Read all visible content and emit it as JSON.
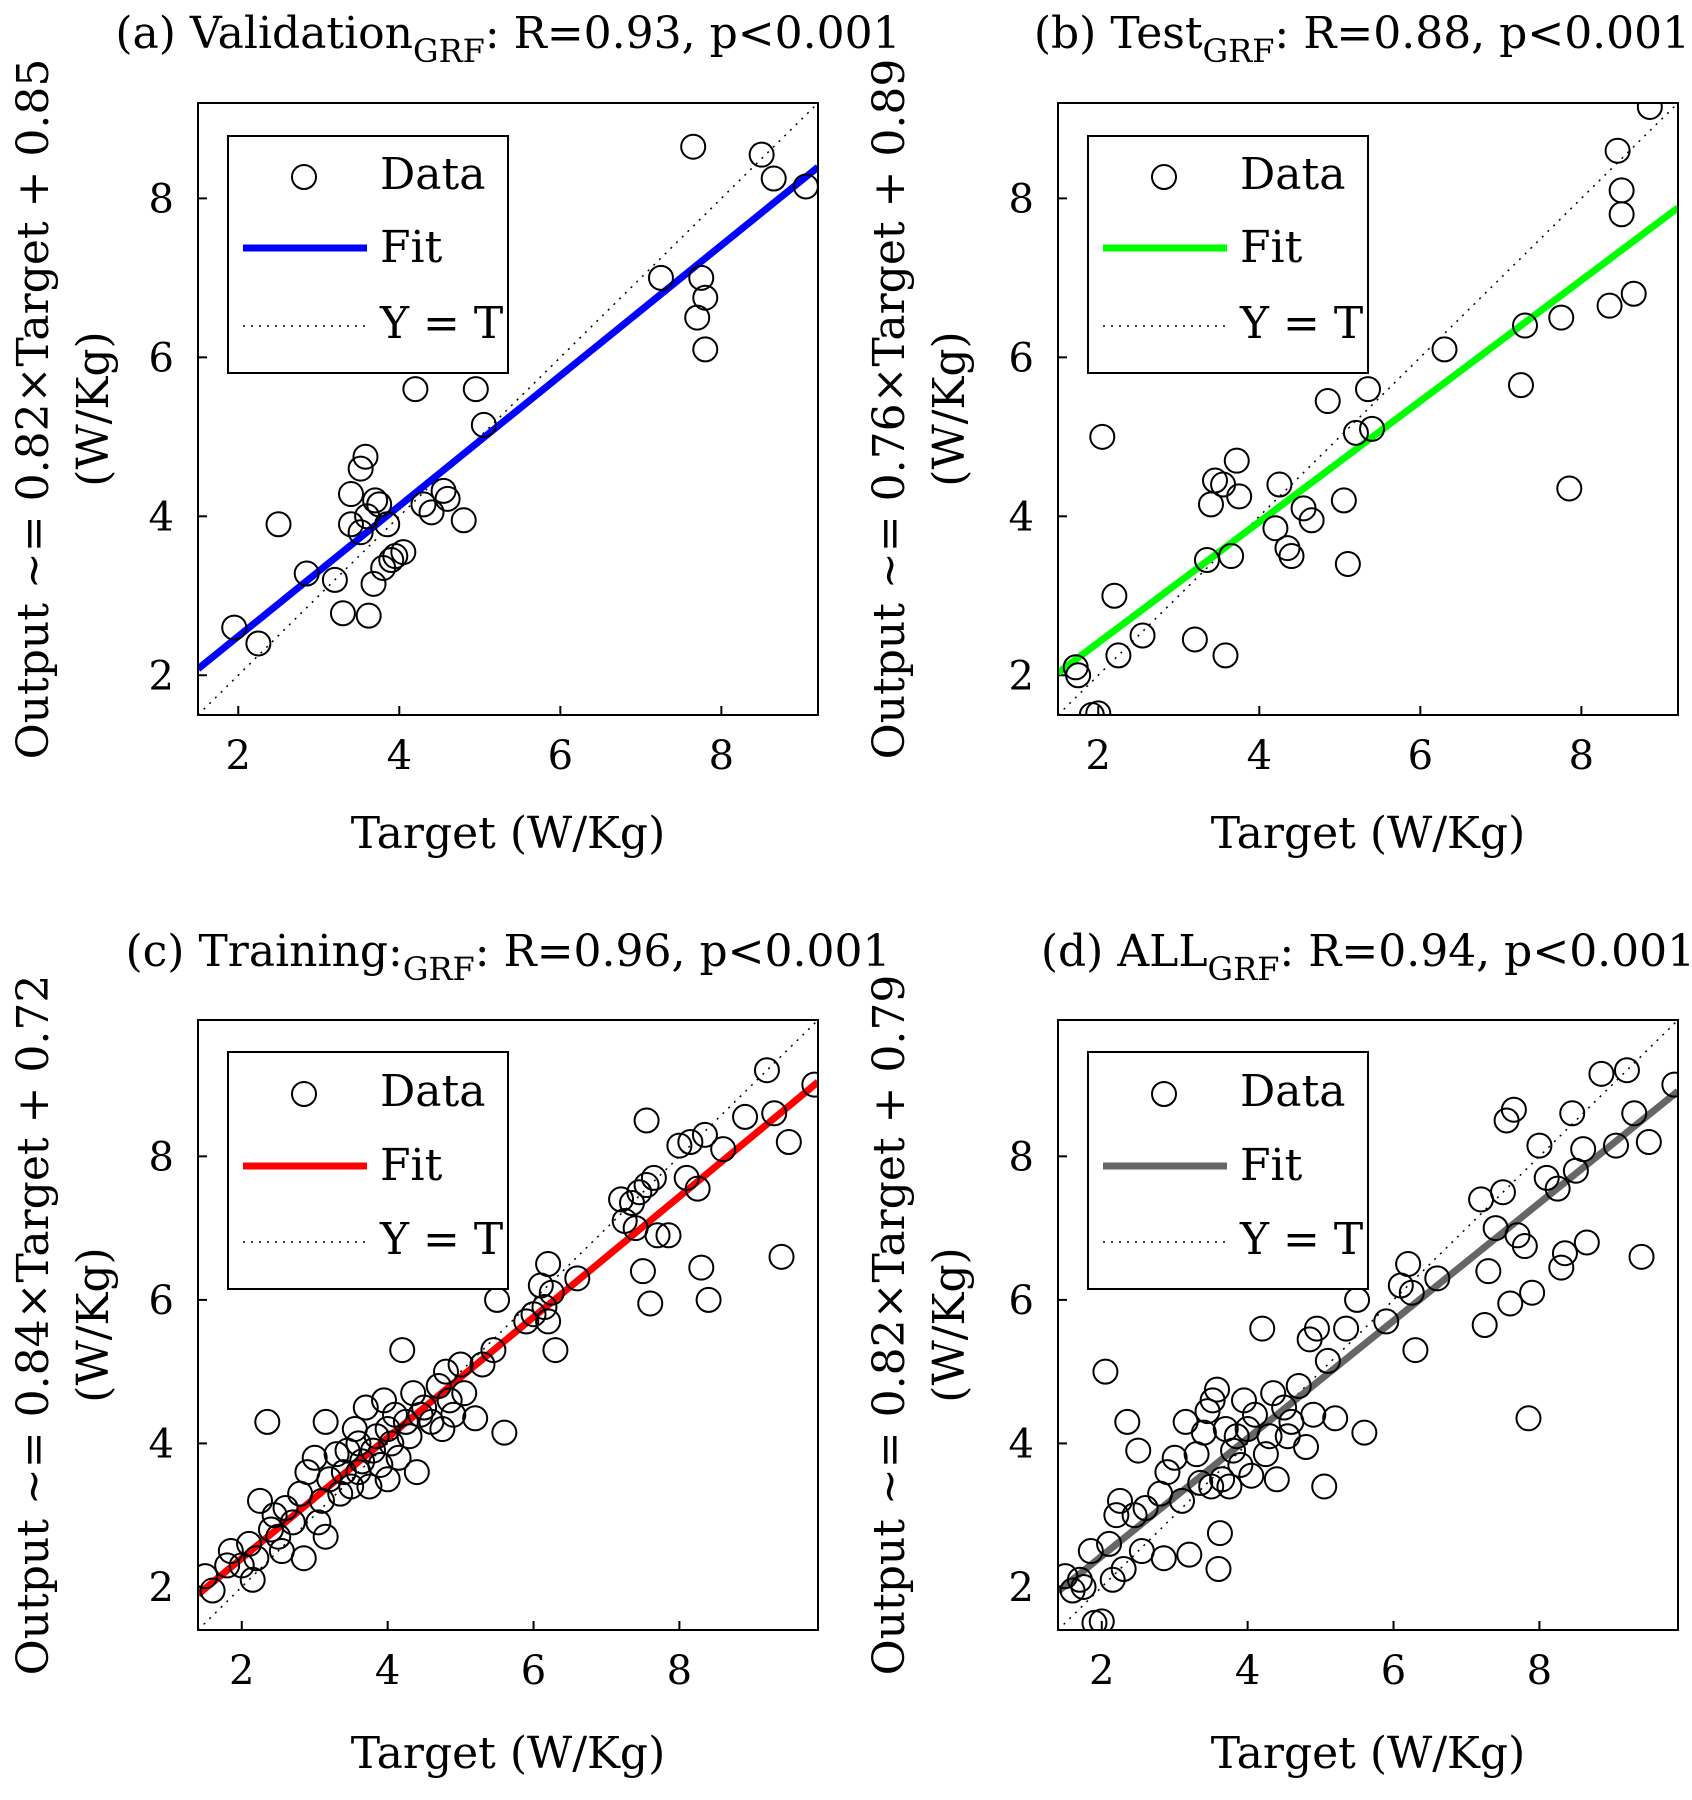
{
  "chart_data": [
    {
      "type": "scatter",
      "title": {
        "prefix": "(a) Validation",
        "sub": "GRF",
        "suffix": ": R=0.93, p<0.001"
      },
      "xlabel": "Target (W/Kg)",
      "ylabel": {
        "line1": "Output ~= 0.82×Target + 0.85",
        "line2": "(W/Kg)"
      },
      "xlim": [
        1.5,
        9.2
      ],
      "ylim": [
        1.5,
        9.2
      ],
      "xticks": [
        2,
        4,
        6,
        8
      ],
      "yticks": [
        2,
        4,
        6,
        8
      ],
      "legend": {
        "data": "Data",
        "fit": "Fit",
        "identity": "Y = T"
      },
      "fit": {
        "slope": 0.82,
        "intercept": 0.85,
        "color": "#0000ff"
      },
      "points": [
        [
          1.95,
          2.6
        ],
        [
          2.25,
          2.4
        ],
        [
          2.5,
          3.9
        ],
        [
          2.85,
          3.28
        ],
        [
          3.2,
          3.2
        ],
        [
          3.3,
          2.78
        ],
        [
          3.4,
          4.28
        ],
        [
          3.4,
          3.9
        ],
        [
          3.52,
          3.8
        ],
        [
          3.52,
          4.6
        ],
        [
          3.58,
          4.75
        ],
        [
          3.6,
          4.0
        ],
        [
          3.62,
          2.75
        ],
        [
          3.68,
          3.15
        ],
        [
          3.7,
          4.2
        ],
        [
          3.75,
          4.15
        ],
        [
          3.8,
          3.35
        ],
        [
          3.85,
          3.9
        ],
        [
          3.9,
          3.45
        ],
        [
          3.95,
          3.5
        ],
        [
          4.05,
          3.55
        ],
        [
          4.2,
          5.6
        ],
        [
          4.3,
          4.15
        ],
        [
          4.4,
          4.05
        ],
        [
          4.55,
          4.32
        ],
        [
          4.6,
          4.22
        ],
        [
          4.8,
          3.95
        ],
        [
          4.95,
          5.6
        ],
        [
          5.05,
          5.15
        ],
        [
          7.25,
          7.0
        ],
        [
          7.65,
          8.65
        ],
        [
          7.7,
          6.5
        ],
        [
          7.75,
          7.0
        ],
        [
          7.8,
          6.75
        ],
        [
          7.8,
          6.1
        ],
        [
          8.5,
          8.55
        ],
        [
          8.65,
          8.25
        ],
        [
          9.05,
          8.15
        ]
      ]
    },
    {
      "type": "scatter",
      "title": {
        "prefix": "(b) Test",
        "sub": "GRF",
        "suffix": ": R=0.88, p<0.001"
      },
      "xlabel": "Target (W/Kg)",
      "ylabel": {
        "line1": "Output ~= 0.76×Target + 0.89",
        "line2": "(W/Kg)"
      },
      "xlim": [
        1.5,
        9.2
      ],
      "ylim": [
        1.5,
        9.2
      ],
      "xticks": [
        2,
        4,
        6,
        8
      ],
      "yticks": [
        2,
        4,
        6,
        8
      ],
      "legend": {
        "data": "Data",
        "fit": "Fit",
        "identity": "Y = T"
      },
      "fit": {
        "slope": 0.76,
        "intercept": 0.89,
        "color": "#00ff00"
      },
      "points": [
        [
          1.72,
          2.1
        ],
        [
          1.75,
          2.0
        ],
        [
          1.92,
          1.5
        ],
        [
          2.0,
          1.52
        ],
        [
          2.05,
          5.0
        ],
        [
          2.2,
          3.0
        ],
        [
          2.25,
          2.25
        ],
        [
          2.55,
          2.5
        ],
        [
          3.2,
          2.45
        ],
        [
          3.35,
          3.45
        ],
        [
          3.4,
          4.15
        ],
        [
          3.45,
          4.45
        ],
        [
          3.55,
          4.4
        ],
        [
          3.58,
          2.25
        ],
        [
          3.65,
          3.5
        ],
        [
          3.72,
          4.7
        ],
        [
          3.75,
          4.25
        ],
        [
          4.2,
          3.85
        ],
        [
          4.25,
          4.4
        ],
        [
          4.35,
          3.6
        ],
        [
          4.4,
          3.5
        ],
        [
          4.55,
          4.1
        ],
        [
          4.65,
          3.95
        ],
        [
          4.85,
          5.45
        ],
        [
          5.05,
          4.2
        ],
        [
          5.1,
          3.4
        ],
        [
          5.2,
          5.05
        ],
        [
          5.35,
          5.6
        ],
        [
          5.4,
          5.1
        ],
        [
          6.3,
          6.1
        ],
        [
          7.25,
          5.65
        ],
        [
          7.3,
          6.4
        ],
        [
          7.75,
          6.5
        ],
        [
          7.85,
          4.35
        ],
        [
          8.35,
          6.65
        ],
        [
          8.45,
          8.6
        ],
        [
          8.5,
          7.8
        ],
        [
          8.5,
          8.1
        ],
        [
          8.65,
          6.8
        ],
        [
          8.85,
          9.15
        ]
      ]
    },
    {
      "type": "scatter",
      "title": {
        "prefix": "(c) Training:",
        "sub": "GRF",
        "suffix": ": R=0.96, p<0.001"
      },
      "xlabel": "Target (W/Kg)",
      "ylabel": {
        "line1": "Output ~= 0.84×Target + 0.72",
        "line2": "(W/Kg)"
      },
      "xlim": [
        1.4,
        9.9
      ],
      "ylim": [
        1.4,
        9.9
      ],
      "xticks": [
        2,
        4,
        6,
        8
      ],
      "yticks": [
        2,
        4,
        6,
        8
      ],
      "legend": {
        "data": "Data",
        "fit": "Fit",
        "identity": "Y = T"
      },
      "fit": {
        "slope": 0.84,
        "intercept": 0.72,
        "color": "#ff0000"
      },
      "points": [
        [
          1.6,
          1.95
        ],
        [
          1.5,
          2.15
        ],
        [
          1.8,
          2.3
        ],
        [
          1.85,
          2.5
        ],
        [
          2.0,
          2.3
        ],
        [
          2.1,
          2.6
        ],
        [
          2.15,
          2.1
        ],
        [
          2.2,
          2.4
        ],
        [
          2.25,
          3.2
        ],
        [
          2.35,
          4.3
        ],
        [
          2.4,
          2.8
        ],
        [
          2.45,
          3.0
        ],
        [
          2.5,
          2.7
        ],
        [
          2.55,
          2.5
        ],
        [
          2.6,
          3.1
        ],
        [
          2.7,
          2.9
        ],
        [
          2.8,
          3.3
        ],
        [
          2.85,
          2.4
        ],
        [
          2.9,
          3.6
        ],
        [
          3.0,
          3.8
        ],
        [
          3.05,
          2.9
        ],
        [
          3.1,
          3.2
        ],
        [
          3.15,
          2.7
        ],
        [
          3.15,
          4.3
        ],
        [
          3.2,
          3.5
        ],
        [
          3.3,
          3.85
        ],
        [
          3.35,
          3.3
        ],
        [
          3.4,
          3.6
        ],
        [
          3.45,
          3.9
        ],
        [
          3.5,
          3.4
        ],
        [
          3.55,
          4.2
        ],
        [
          3.6,
          3.6
        ],
        [
          3.6,
          4.0
        ],
        [
          3.65,
          3.75
        ],
        [
          3.7,
          4.5
        ],
        [
          3.75,
          3.4
        ],
        [
          3.8,
          3.9
        ],
        [
          3.85,
          4.1
        ],
        [
          3.9,
          3.7
        ],
        [
          3.95,
          4.6
        ],
        [
          4.0,
          4.2
        ],
        [
          4.0,
          3.5
        ],
        [
          4.05,
          4.0
        ],
        [
          4.1,
          4.4
        ],
        [
          4.15,
          3.8
        ],
        [
          4.2,
          5.3
        ],
        [
          4.25,
          4.3
        ],
        [
          4.3,
          4.1
        ],
        [
          4.35,
          4.7
        ],
        [
          4.4,
          3.6
        ],
        [
          4.45,
          4.4
        ],
        [
          4.5,
          4.5
        ],
        [
          4.6,
          4.3
        ],
        [
          4.7,
          4.8
        ],
        [
          4.75,
          4.2
        ],
        [
          4.8,
          5.0
        ],
        [
          4.85,
          4.6
        ],
        [
          4.9,
          4.4
        ],
        [
          5.0,
          5.1
        ],
        [
          5.05,
          4.7
        ],
        [
          5.2,
          4.35
        ],
        [
          5.3,
          5.1
        ],
        [
          5.45,
          5.3
        ],
        [
          5.5,
          6.0
        ],
        [
          5.6,
          4.15
        ],
        [
          5.9,
          5.7
        ],
        [
          6.0,
          5.8
        ],
        [
          6.1,
          6.2
        ],
        [
          6.15,
          5.9
        ],
        [
          6.2,
          5.7
        ],
        [
          6.2,
          6.5
        ],
        [
          6.25,
          6.1
        ],
        [
          6.3,
          5.3
        ],
        [
          6.6,
          6.3
        ],
        [
          7.2,
          7.4
        ],
        [
          7.25,
          7.1
        ],
        [
          7.35,
          7.35
        ],
        [
          7.4,
          7.0
        ],
        [
          7.45,
          7.5
        ],
        [
          7.5,
          6.4
        ],
        [
          7.55,
          7.6
        ],
        [
          7.55,
          8.5
        ],
        [
          7.6,
          5.95
        ],
        [
          7.65,
          7.7
        ],
        [
          7.7,
          6.9
        ],
        [
          7.85,
          6.9
        ],
        [
          8.0,
          8.15
        ],
        [
          8.1,
          7.7
        ],
        [
          8.15,
          8.2
        ],
        [
          8.25,
          7.55
        ],
        [
          8.3,
          6.45
        ],
        [
          8.35,
          8.3
        ],
        [
          8.4,
          6.0
        ],
        [
          8.6,
          8.1
        ],
        [
          8.9,
          8.55
        ],
        [
          9.2,
          9.2
        ],
        [
          9.3,
          8.6
        ],
        [
          9.4,
          6.6
        ],
        [
          9.5,
          8.2
        ],
        [
          9.85,
          9.0
        ]
      ]
    },
    {
      "type": "scatter",
      "title": {
        "prefix": "(d) ALL",
        "sub": "GRF",
        "suffix": ": R=0.94, p<0.001"
      },
      "xlabel": "Target (W/Kg)",
      "ylabel": {
        "line1": "Output ~= 0.82×Target + 0.79",
        "line2": "(W/Kg)"
      },
      "xlim": [
        1.4,
        9.9
      ],
      "ylim": [
        1.4,
        9.9
      ],
      "xticks": [
        2,
        4,
        6,
        8
      ],
      "yticks": [
        2,
        4,
        6,
        8
      ],
      "legend": {
        "data": "Data",
        "fit": "Fit",
        "identity": "Y = T"
      },
      "fit": {
        "slope": 0.82,
        "intercept": 0.79,
        "color": "#666666"
      },
      "points": [
        [
          1.5,
          2.15
        ],
        [
          1.6,
          1.95
        ],
        [
          1.7,
          2.1
        ],
        [
          1.75,
          2.0
        ],
        [
          1.85,
          2.5
        ],
        [
          1.9,
          1.5
        ],
        [
          2.0,
          1.52
        ],
        [
          2.05,
          5.0
        ],
        [
          2.1,
          2.6
        ],
        [
          2.15,
          2.1
        ],
        [
          2.2,
          3.0
        ],
        [
          2.25,
          3.2
        ],
        [
          2.3,
          2.25
        ],
        [
          2.35,
          4.3
        ],
        [
          2.45,
          3.0
        ],
        [
          2.5,
          3.9
        ],
        [
          2.55,
          2.5
        ],
        [
          2.6,
          3.1
        ],
        [
          2.8,
          3.3
        ],
        [
          2.85,
          2.4
        ],
        [
          2.9,
          3.6
        ],
        [
          3.0,
          3.8
        ],
        [
          3.1,
          3.2
        ],
        [
          3.15,
          4.3
        ],
        [
          3.2,
          2.45
        ],
        [
          3.3,
          3.85
        ],
        [
          3.35,
          3.45
        ],
        [
          3.4,
          4.15
        ],
        [
          3.45,
          4.45
        ],
        [
          3.5,
          3.4
        ],
        [
          3.52,
          4.6
        ],
        [
          3.58,
          4.75
        ],
        [
          3.6,
          2.25
        ],
        [
          3.62,
          2.75
        ],
        [
          3.65,
          3.5
        ],
        [
          3.7,
          4.2
        ],
        [
          3.75,
          3.4
        ],
        [
          3.8,
          3.9
        ],
        [
          3.85,
          4.1
        ],
        [
          3.9,
          3.7
        ],
        [
          3.95,
          4.6
        ],
        [
          4.0,
          4.2
        ],
        [
          4.05,
          3.55
        ],
        [
          4.1,
          4.4
        ],
        [
          4.2,
          5.6
        ],
        [
          4.25,
          3.85
        ],
        [
          4.3,
          4.1
        ],
        [
          4.35,
          4.7
        ],
        [
          4.4,
          3.5
        ],
        [
          4.5,
          4.5
        ],
        [
          4.55,
          4.1
        ],
        [
          4.6,
          4.3
        ],
        [
          4.7,
          4.8
        ],
        [
          4.8,
          3.95
        ],
        [
          4.85,
          5.45
        ],
        [
          4.9,
          4.4
        ],
        [
          4.95,
          5.6
        ],
        [
          5.05,
          3.4
        ],
        [
          5.1,
          5.15
        ],
        [
          5.2,
          4.35
        ],
        [
          5.35,
          5.6
        ],
        [
          5.5,
          6.0
        ],
        [
          5.6,
          4.15
        ],
        [
          5.9,
          5.7
        ],
        [
          6.1,
          6.2
        ],
        [
          6.2,
          6.5
        ],
        [
          6.25,
          6.1
        ],
        [
          6.3,
          5.3
        ],
        [
          6.6,
          6.3
        ],
        [
          7.2,
          7.4
        ],
        [
          7.25,
          5.65
        ],
        [
          7.3,
          6.4
        ],
        [
          7.4,
          7.0
        ],
        [
          7.5,
          7.5
        ],
        [
          7.55,
          8.5
        ],
        [
          7.6,
          5.95
        ],
        [
          7.65,
          8.65
        ],
        [
          7.7,
          6.9
        ],
        [
          7.8,
          6.75
        ],
        [
          7.85,
          4.35
        ],
        [
          7.9,
          6.1
        ],
        [
          8.0,
          8.15
        ],
        [
          8.1,
          7.7
        ],
        [
          8.25,
          7.55
        ],
        [
          8.3,
          6.45
        ],
        [
          8.35,
          6.65
        ],
        [
          8.45,
          8.6
        ],
        [
          8.5,
          7.8
        ],
        [
          8.6,
          8.1
        ],
        [
          8.65,
          6.8
        ],
        [
          8.85,
          9.15
        ],
        [
          9.05,
          8.15
        ],
        [
          9.2,
          9.2
        ],
        [
          9.3,
          8.6
        ],
        [
          9.4,
          6.6
        ],
        [
          9.5,
          8.2
        ],
        [
          9.85,
          9.0
        ]
      ]
    }
  ]
}
